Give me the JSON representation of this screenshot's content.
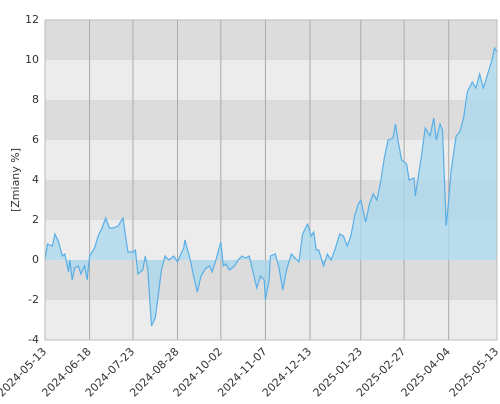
{
  "chart_data": {
    "type": "area",
    "y_label": "[Zmiany %]",
    "x": [
      "2024-05-13",
      "2024-05-15",
      "2024-05-19",
      "2024-05-21",
      "2024-05-24",
      "2024-05-27",
      "2024-05-29",
      "2024-06-01",
      "2024-06-02",
      "2024-06-04",
      "2024-06-06",
      "2024-06-09",
      "2024-06-11",
      "2024-06-14",
      "2024-06-16",
      "2024-06-18",
      "2024-06-22",
      "2024-06-25",
      "2024-06-28",
      "2024-07-01",
      "2024-07-04",
      "2024-07-07",
      "2024-07-11",
      "2024-07-15",
      "2024-07-17",
      "2024-07-19",
      "2024-07-23",
      "2024-07-25",
      "2024-07-27",
      "2024-07-31",
      "2024-08-02",
      "2024-08-04",
      "2024-08-07",
      "2024-08-10",
      "2024-08-12",
      "2024-08-15",
      "2024-08-18",
      "2024-08-21",
      "2024-08-25",
      "2024-08-28",
      "2024-08-30",
      "2024-09-02",
      "2024-09-03",
      "2024-09-07",
      "2024-09-10",
      "2024-09-13",
      "2024-09-16",
      "2024-09-20",
      "2024-09-23",
      "2024-09-25",
      "2024-09-28",
      "2024-10-02",
      "2024-10-04",
      "2024-10-06",
      "2024-10-09",
      "2024-10-13",
      "2024-10-16",
      "2024-10-19",
      "2024-10-22",
      "2024-10-25",
      "2024-10-28",
      "2024-10-31",
      "2024-11-03",
      "2024-11-06",
      "2024-11-07",
      "2024-11-10",
      "2024-11-11",
      "2024-11-15",
      "2024-11-18",
      "2024-11-21",
      "2024-11-24",
      "2024-11-28",
      "2024-12-01",
      "2024-12-04",
      "2024-12-07",
      "2024-12-11",
      "2024-12-14",
      "2024-12-16",
      "2024-12-18",
      "2024-12-20",
      "2024-12-24",
      "2024-12-27",
      "2024-12-30",
      "2025-01-02",
      "2025-01-06",
      "2025-01-09",
      "2025-01-12",
      "2025-01-15",
      "2025-01-18",
      "2025-01-21",
      "2025-01-23",
      "2025-01-27",
      "2025-01-30",
      "2025-02-02",
      "2025-02-05",
      "2025-02-08",
      "2025-02-11",
      "2025-02-14",
      "2025-02-18",
      "2025-02-20",
      "2025-02-22",
      "2025-02-25",
      "2025-02-27",
      "2025-03-01",
      "2025-03-03",
      "2025-03-07",
      "2025-03-08",
      "2025-03-11",
      "2025-03-13",
      "2025-03-16",
      "2025-03-20",
      "2025-03-23",
      "2025-03-25",
      "2025-03-28",
      "2025-03-30",
      "2025-04-02",
      "2025-04-04",
      "2025-04-06",
      "2025-04-10",
      "2025-04-13",
      "2025-04-16",
      "2025-04-19",
      "2025-04-23",
      "2025-04-26",
      "2025-04-29",
      "2025-05-02",
      "2025-05-06",
      "2025-05-09",
      "2025-05-11",
      "2025-05-13"
    ],
    "values": [
      0,
      0.8,
      0.7,
      1.3,
      0.9,
      0.2,
      0.3,
      -0.6,
      0,
      -1,
      -0.4,
      -0.3,
      -0.7,
      -0.3,
      -1,
      0.2,
      0.6,
      1.2,
      1.6,
      2.1,
      1.6,
      1.6,
      1.7,
      2.1,
      1.2,
      0.4,
      0.4,
      0.5,
      -0.7,
      -0.5,
      0.2,
      -0.5,
      -3.3,
      -2.9,
      -2,
      -0.5,
      0.2,
      0,
      0.2,
      -0.1,
      0.2,
      0.6,
      1,
      0.1,
      -0.8,
      -1.6,
      -0.8,
      -0.4,
      -0.3,
      -0.6,
      0,
      0.9,
      -0.3,
      -0.2,
      -0.5,
      -0.3,
      0,
      0.2,
      0.1,
      0.2,
      -0.6,
      -1.4,
      -0.8,
      -1,
      -2,
      -1,
      0.2,
      0.3,
      -0.4,
      -1.5,
      -0.5,
      0.3,
      0.1,
      -0.1,
      1.3,
      1.8,
      1.2,
      1.4,
      0.5,
      0.5,
      -0.3,
      0.3,
      0,
      0.5,
      1.3,
      1.2,
      0.7,
      1.2,
      2.2,
      2.8,
      3,
      1.9,
      2.8,
      3.3,
      3,
      3.9,
      5.1,
      6,
      6.1,
      6.8,
      6,
      5,
      4.9,
      4.8,
      4,
      4.1,
      3.2,
      4.4,
      5.2,
      6.6,
      6.2,
      7.1,
      6,
      6.8,
      6.5,
      1.7,
      3,
      4.5,
      6.2,
      6.4,
      7.1,
      8.4,
      8.9,
      8.6,
      9.3,
      8.6,
      9.4,
      10,
      10.6,
      10.4
    ],
    "line_color": "#5aaee6",
    "fill_color": "#a8d8ee",
    "xlim": [
      "2024-05-13",
      "2025-05-13"
    ],
    "xticks": [
      "2024-05-13",
      "2024-06-18",
      "2024-07-23",
      "2024-08-28",
      "2024-10-02",
      "2024-11-07",
      "2024-12-13",
      "2025-01-23",
      "2025-02-27",
      "2025-04-04",
      "2025-05-13"
    ],
    "ylim": [
      -4,
      12
    ],
    "yticks": [
      -4,
      -2,
      0,
      2,
      4,
      6,
      8,
      10,
      12
    ],
    "band_colors": [
      "#ececec",
      "#dcdcdc"
    ],
    "grid": true
  }
}
